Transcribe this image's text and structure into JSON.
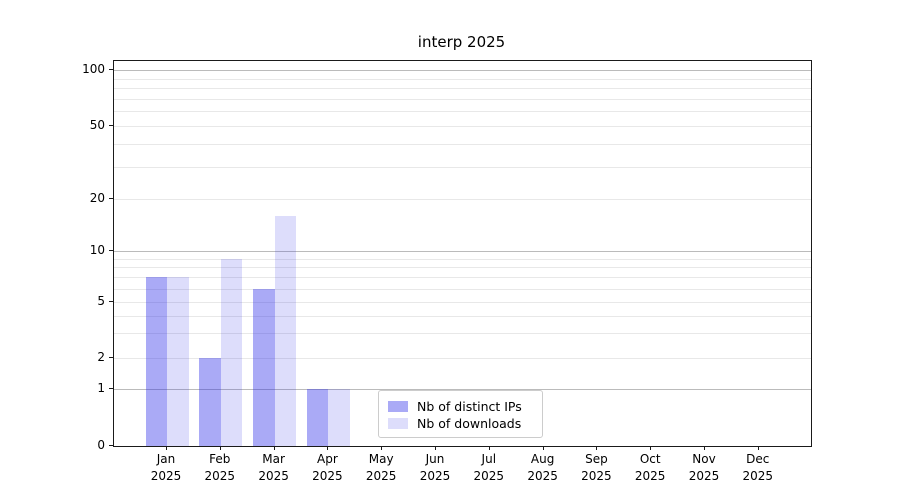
{
  "figure": {
    "background": "#ffffff"
  },
  "chart_data": {
    "type": "bar",
    "title": "interp 2025",
    "xlabel": "",
    "ylabel": "",
    "x_tick_year": "2025",
    "categories": [
      "Jan",
      "Feb",
      "Mar",
      "Apr",
      "May",
      "Jun",
      "Jul",
      "Aug",
      "Sep",
      "Oct",
      "Nov",
      "Dec"
    ],
    "series": [
      {
        "name": "Nb of distinct IPs",
        "color": "rgba(43,43,232,0.40)",
        "values": [
          7,
          2,
          6,
          1,
          0,
          0,
          0,
          0,
          0,
          0,
          0,
          0
        ]
      },
      {
        "name": "Nb of downloads",
        "color": "rgba(43,43,232,0.16)",
        "values": [
          7,
          9,
          16,
          1,
          0,
          0,
          0,
          0,
          0,
          0,
          0,
          0
        ]
      }
    ],
    "yscale": "symlog-like",
    "ylim": [
      0,
      112
    ],
    "y_tick_labels": [
      0,
      1,
      2,
      5,
      10,
      20,
      50,
      100
    ],
    "y_major_gridlines": [
      1,
      10,
      100
    ],
    "y_minor_gridlines": [
      2,
      3,
      4,
      5,
      6,
      7,
      8,
      9,
      20,
      30,
      40,
      50,
      60,
      70,
      80,
      90
    ],
    "grid": "horizontal only",
    "legend_position": "bottom-center",
    "colors": {
      "grid_major": "#bbbbbb",
      "grid_minor": "#e8e8e8",
      "spine": "#1a1a1a",
      "text": "#000000",
      "legend_border": "#cccccc",
      "legend_background": "#ffffff"
    }
  }
}
